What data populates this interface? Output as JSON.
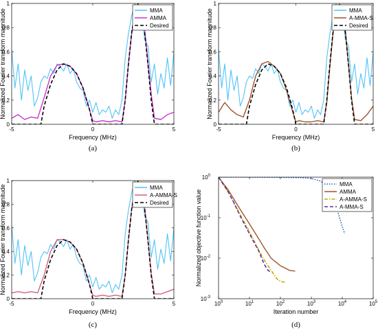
{
  "chart_data": [
    {
      "type": "line",
      "caption": "(a)",
      "xlabel": "Frequency (MHz)",
      "ylabel": "Normalized Fourier transform magnitude",
      "xlim": [
        -5,
        5
      ],
      "ylim": [
        0,
        1
      ],
      "xticks": [
        "-5",
        "0",
        "5"
      ],
      "yticks": [
        "0",
        "0.2",
        "0.4",
        "0.6",
        "0.8",
        "1"
      ],
      "legend_position": "top-right",
      "grid": false,
      "series": [
        {
          "name": "MMA",
          "color": "#4fc3f7",
          "style": "solid",
          "x": [
            -5,
            -4.8,
            -4.6,
            -4.4,
            -4.2,
            -4,
            -3.8,
            -3.6,
            -3.4,
            -3.2,
            -3,
            -2.8,
            -2.6,
            -2.4,
            -2.2,
            -2,
            -1.8,
            -1.6,
            -1.4,
            -1.2,
            -1,
            -0.8,
            -0.6,
            -0.4,
            -0.2,
            0,
            0.2,
            0.4,
            0.6,
            0.8,
            1,
            1.2,
            1.4,
            1.6,
            1.8,
            2,
            2.2,
            2.4,
            2.6,
            2.8,
            3,
            3.2,
            3.4,
            3.6,
            3.8,
            4,
            4.2,
            4.4,
            4.6,
            4.8,
            5
          ],
          "y": [
            0.62,
            0.3,
            0.5,
            0.2,
            0.45,
            0.28,
            0.4,
            0.15,
            0.22,
            0.35,
            0.4,
            0.38,
            0.46,
            0.42,
            0.5,
            0.48,
            0.44,
            0.5,
            0.42,
            0.46,
            0.35,
            0.3,
            0.28,
            0.15,
            0.2,
            0.1,
            0.18,
            0.08,
            0.12,
            0.1,
            0.15,
            0.05,
            0.12,
            0.08,
            0.2,
            0.55,
            0.75,
            0.9,
            1.0,
            0.88,
            0.95,
            0.7,
            0.65,
            0.35,
            0.5,
            0.25,
            0.42,
            0.3,
            0.55,
            0.32,
            0.6
          ]
        },
        {
          "name": "AMMA",
          "color": "#cc33cc",
          "style": "solid",
          "x": [
            -5,
            -4.6,
            -4.2,
            -3.8,
            -3.4,
            -3,
            -2.6,
            -2.2,
            -1.8,
            -1.4,
            -1,
            -0.6,
            -0.2,
            0,
            0.2,
            0.6,
            1,
            1.4,
            1.8,
            2,
            2.2,
            2.4,
            2.6,
            2.8,
            3,
            3.2,
            3.4,
            3.6,
            3.8,
            4.2,
            4.6,
            5
          ],
          "y": [
            0.05,
            0.08,
            0.04,
            0.06,
            0.05,
            0.22,
            0.4,
            0.49,
            0.5,
            0.48,
            0.42,
            0.3,
            0.12,
            0.03,
            0.02,
            0.03,
            0.02,
            0.03,
            0.02,
            0.2,
            0.5,
            0.75,
            0.92,
            0.98,
            0.94,
            0.78,
            0.52,
            0.25,
            0.05,
            0.04,
            0.08,
            0.1
          ]
        },
        {
          "name": "Desired",
          "color": "#000000",
          "style": "dashed",
          "x": [
            -5,
            -3.2,
            -3,
            -2.6,
            -2.2,
            -1.8,
            -1.4,
            -1,
            -0.6,
            -0.2,
            0,
            1.8,
            2,
            2.2,
            2.4,
            2.6,
            2.8,
            3,
            3.2,
            3.4,
            3.6,
            3.8,
            5
          ],
          "y": [
            0,
            0,
            0.15,
            0.33,
            0.45,
            0.5,
            0.48,
            0.42,
            0.3,
            0.12,
            0,
            0,
            0.2,
            0.5,
            0.76,
            0.93,
            1.0,
            0.93,
            0.76,
            0.5,
            0.2,
            0,
            0
          ]
        }
      ]
    },
    {
      "type": "line",
      "caption": "(b)",
      "xlabel": "Frequency (MHz)",
      "ylabel": "Normalized Fourier transform magnitude",
      "xlim": [
        -5,
        5
      ],
      "ylim": [
        0,
        1
      ],
      "xticks": [
        "-5",
        "0",
        "5"
      ],
      "yticks": [
        "0",
        "0.2",
        "0.4",
        "0.6",
        "0.8",
        "1"
      ],
      "legend_position": "top-right",
      "grid": false,
      "series": [
        {
          "name": "MMA",
          "color": "#4fc3f7",
          "style": "solid",
          "x": [
            -5,
            -4.8,
            -4.6,
            -4.4,
            -4.2,
            -4,
            -3.8,
            -3.6,
            -3.4,
            -3.2,
            -3,
            -2.8,
            -2.6,
            -2.4,
            -2.2,
            -2,
            -1.8,
            -1.6,
            -1.4,
            -1.2,
            -1,
            -0.8,
            -0.6,
            -0.4,
            -0.2,
            0,
            0.2,
            0.4,
            0.6,
            0.8,
            1,
            1.2,
            1.4,
            1.6,
            1.8,
            2,
            2.2,
            2.4,
            2.6,
            2.8,
            3,
            3.2,
            3.4,
            3.6,
            3.8,
            4,
            4.2,
            4.4,
            4.6,
            4.8,
            5
          ],
          "y": [
            0.62,
            0.3,
            0.5,
            0.2,
            0.45,
            0.28,
            0.4,
            0.15,
            0.22,
            0.35,
            0.4,
            0.38,
            0.46,
            0.42,
            0.5,
            0.48,
            0.44,
            0.5,
            0.42,
            0.46,
            0.35,
            0.3,
            0.28,
            0.15,
            0.2,
            0.1,
            0.18,
            0.08,
            0.12,
            0.1,
            0.15,
            0.05,
            0.12,
            0.08,
            0.2,
            0.55,
            0.75,
            0.9,
            1.0,
            0.88,
            0.95,
            0.7,
            0.65,
            0.35,
            0.5,
            0.25,
            0.42,
            0.3,
            0.55,
            0.32,
            0.6
          ]
        },
        {
          "name": "A-MMA-S",
          "color": "#a0522d",
          "style": "solid",
          "x": [
            -5,
            -4.6,
            -4.2,
            -3.8,
            -3.4,
            -3,
            -2.6,
            -2.2,
            -1.8,
            -1.4,
            -1,
            -0.6,
            -0.2,
            0,
            0.2,
            0.6,
            1,
            1.4,
            1.8,
            2,
            2.2,
            2.4,
            2.6,
            2.8,
            3,
            3.2,
            3.4,
            3.6,
            3.8,
            4.2,
            4.6,
            5
          ],
          "y": [
            0.1,
            0.18,
            0.12,
            0.08,
            0.06,
            0.2,
            0.4,
            0.5,
            0.52,
            0.48,
            0.42,
            0.28,
            0.1,
            0.02,
            0.03,
            0.02,
            0.02,
            0.03,
            0.02,
            0.18,
            0.48,
            0.75,
            0.92,
            0.98,
            0.94,
            0.78,
            0.5,
            0.22,
            0.04,
            0.03,
            0.08,
            0.15
          ]
        },
        {
          "name": "Desired",
          "color": "#000000",
          "style": "dashed",
          "x": [
            -5,
            -3.2,
            -3,
            -2.6,
            -2.2,
            -1.8,
            -1.4,
            -1,
            -0.6,
            -0.2,
            0,
            1.8,
            2,
            2.2,
            2.4,
            2.6,
            2.8,
            3,
            3.2,
            3.4,
            3.6,
            3.8,
            5
          ],
          "y": [
            0,
            0,
            0.15,
            0.33,
            0.45,
            0.5,
            0.48,
            0.42,
            0.3,
            0.12,
            0,
            0,
            0.2,
            0.5,
            0.76,
            0.93,
            1.0,
            0.93,
            0.76,
            0.5,
            0.2,
            0,
            0
          ]
        }
      ]
    },
    {
      "type": "line",
      "caption": "(c)",
      "xlabel": "Frequency (MHz)",
      "ylabel": "Normalized Fourier transform magnitude",
      "xlim": [
        -5,
        5
      ],
      "ylim": [
        0,
        1
      ],
      "xticks": [
        "-5",
        "0",
        "5"
      ],
      "yticks": [
        "0",
        "0.2",
        "0.4",
        "0.6",
        "0.8",
        "1"
      ],
      "legend_position": "top-right",
      "grid": false,
      "series": [
        {
          "name": "MMA",
          "color": "#4fc3f7",
          "style": "solid",
          "x": [
            -5,
            -4.8,
            -4.6,
            -4.4,
            -4.2,
            -4,
            -3.8,
            -3.6,
            -3.4,
            -3.2,
            -3,
            -2.8,
            -2.6,
            -2.4,
            -2.2,
            -2,
            -1.8,
            -1.6,
            -1.4,
            -1.2,
            -1,
            -0.8,
            -0.6,
            -0.4,
            -0.2,
            0,
            0.2,
            0.4,
            0.6,
            0.8,
            1,
            1.2,
            1.4,
            1.6,
            1.8,
            2,
            2.2,
            2.4,
            2.6,
            2.8,
            3,
            3.2,
            3.4,
            3.6,
            3.8,
            4,
            4.2,
            4.4,
            4.6,
            4.8,
            5
          ],
          "y": [
            0.62,
            0.3,
            0.5,
            0.2,
            0.45,
            0.28,
            0.4,
            0.15,
            0.22,
            0.35,
            0.4,
            0.38,
            0.46,
            0.42,
            0.5,
            0.48,
            0.44,
            0.5,
            0.42,
            0.46,
            0.35,
            0.3,
            0.28,
            0.15,
            0.2,
            0.1,
            0.18,
            0.08,
            0.12,
            0.1,
            0.15,
            0.05,
            0.12,
            0.08,
            0.2,
            0.55,
            0.75,
            0.9,
            1.0,
            0.88,
            0.95,
            0.7,
            0.65,
            0.35,
            0.5,
            0.25,
            0.42,
            0.3,
            0.55,
            0.32,
            0.6
          ]
        },
        {
          "name": "A-AMMA-S",
          "color": "#d6627a",
          "style": "solid",
          "x": [
            -5,
            -4.6,
            -4.2,
            -3.8,
            -3.4,
            -3,
            -2.6,
            -2.2,
            -1.8,
            -1.4,
            -1,
            -0.6,
            -0.2,
            0,
            0.2,
            0.6,
            1,
            1.4,
            1.8,
            2,
            2.2,
            2.4,
            2.6,
            2.8,
            3,
            3.2,
            3.4,
            3.6,
            3.8,
            4.2,
            4.6,
            5
          ],
          "y": [
            0.05,
            0.06,
            0.05,
            0.06,
            0.05,
            0.2,
            0.4,
            0.5,
            0.5,
            0.48,
            0.42,
            0.3,
            0.12,
            0.03,
            0.02,
            0.03,
            0.02,
            0.03,
            0.02,
            0.2,
            0.5,
            0.76,
            0.93,
            0.98,
            0.94,
            0.78,
            0.5,
            0.22,
            0.04,
            0.04,
            0.06,
            0.08
          ]
        },
        {
          "name": "Desired",
          "color": "#000000",
          "style": "dashed",
          "x": [
            -5,
            -3.2,
            -3,
            -2.6,
            -2.2,
            -1.8,
            -1.4,
            -1,
            -0.6,
            -0.2,
            0,
            1.8,
            2,
            2.2,
            2.4,
            2.6,
            2.8,
            3,
            3.2,
            3.4,
            3.6,
            3.8,
            5
          ],
          "y": [
            0,
            0,
            0.15,
            0.33,
            0.45,
            0.5,
            0.48,
            0.42,
            0.3,
            0.12,
            0,
            0,
            0.2,
            0.5,
            0.76,
            0.93,
            1.0,
            0.93,
            0.76,
            0.5,
            0.2,
            0,
            0
          ]
        }
      ]
    },
    {
      "type": "line",
      "caption": "(d)",
      "xlabel": "Iteration number",
      "ylabel": "Normalized objective function value",
      "xscale": "log",
      "yscale": "log",
      "xlim": [
        1,
        100000
      ],
      "ylim": [
        0.001,
        1
      ],
      "xticks": [
        {
          "v": 1,
          "t": "10",
          "e": "0"
        },
        {
          "v": 10,
          "t": "10",
          "e": "1"
        },
        {
          "v": 100,
          "t": "10",
          "e": "2"
        },
        {
          "v": 1000,
          "t": "10",
          "e": "3"
        },
        {
          "v": 10000,
          "t": "10",
          "e": "4"
        },
        {
          "v": 100000,
          "t": "10",
          "e": "5"
        }
      ],
      "yticks": [
        {
          "v": 0.001,
          "t": "10",
          "e": "-3"
        },
        {
          "v": 0.01,
          "t": "10",
          "e": "-2"
        },
        {
          "v": 0.1,
          "t": "10",
          "e": "-1"
        },
        {
          "v": 1,
          "t": "10",
          "e": "0"
        }
      ],
      "legend_position": "top-right",
      "grid": false,
      "series": [
        {
          "name": "MMA",
          "color": "#1f5fbf",
          "style": "dotted",
          "x": [
            1,
            10,
            100,
            500,
            1000,
            2000,
            3000,
            5000,
            7000,
            10000,
            12000
          ],
          "y": [
            1,
            1,
            0.99,
            0.97,
            0.93,
            0.8,
            0.6,
            0.3,
            0.15,
            0.06,
            0.04
          ]
        },
        {
          "name": "AMMA",
          "color": "#a0522d",
          "style": "solid",
          "x": [
            1,
            2,
            3,
            5,
            10,
            20,
            30,
            50,
            100,
            200,
            300
          ],
          "y": [
            1,
            0.5,
            0.3,
            0.16,
            0.07,
            0.03,
            0.018,
            0.01,
            0.0065,
            0.005,
            0.0048
          ]
        },
        {
          "name": "A-AMMA-S",
          "color": "#c9a800",
          "style": "dashdot",
          "x": [
            1,
            2,
            3,
            5,
            10,
            20,
            30,
            50,
            80,
            100,
            150
          ],
          "y": [
            1,
            0.45,
            0.25,
            0.12,
            0.045,
            0.016,
            0.009,
            0.005,
            0.003,
            0.0027,
            0.0025
          ]
        },
        {
          "name": "A-MMA-S",
          "color": "#5a2fa0",
          "style": "dashed",
          "x": [
            1,
            2,
            3,
            5,
            10,
            20,
            30,
            40,
            50
          ],
          "y": [
            1,
            0.45,
            0.25,
            0.11,
            0.04,
            0.015,
            0.007,
            0.005,
            0.0045
          ]
        }
      ]
    }
  ]
}
